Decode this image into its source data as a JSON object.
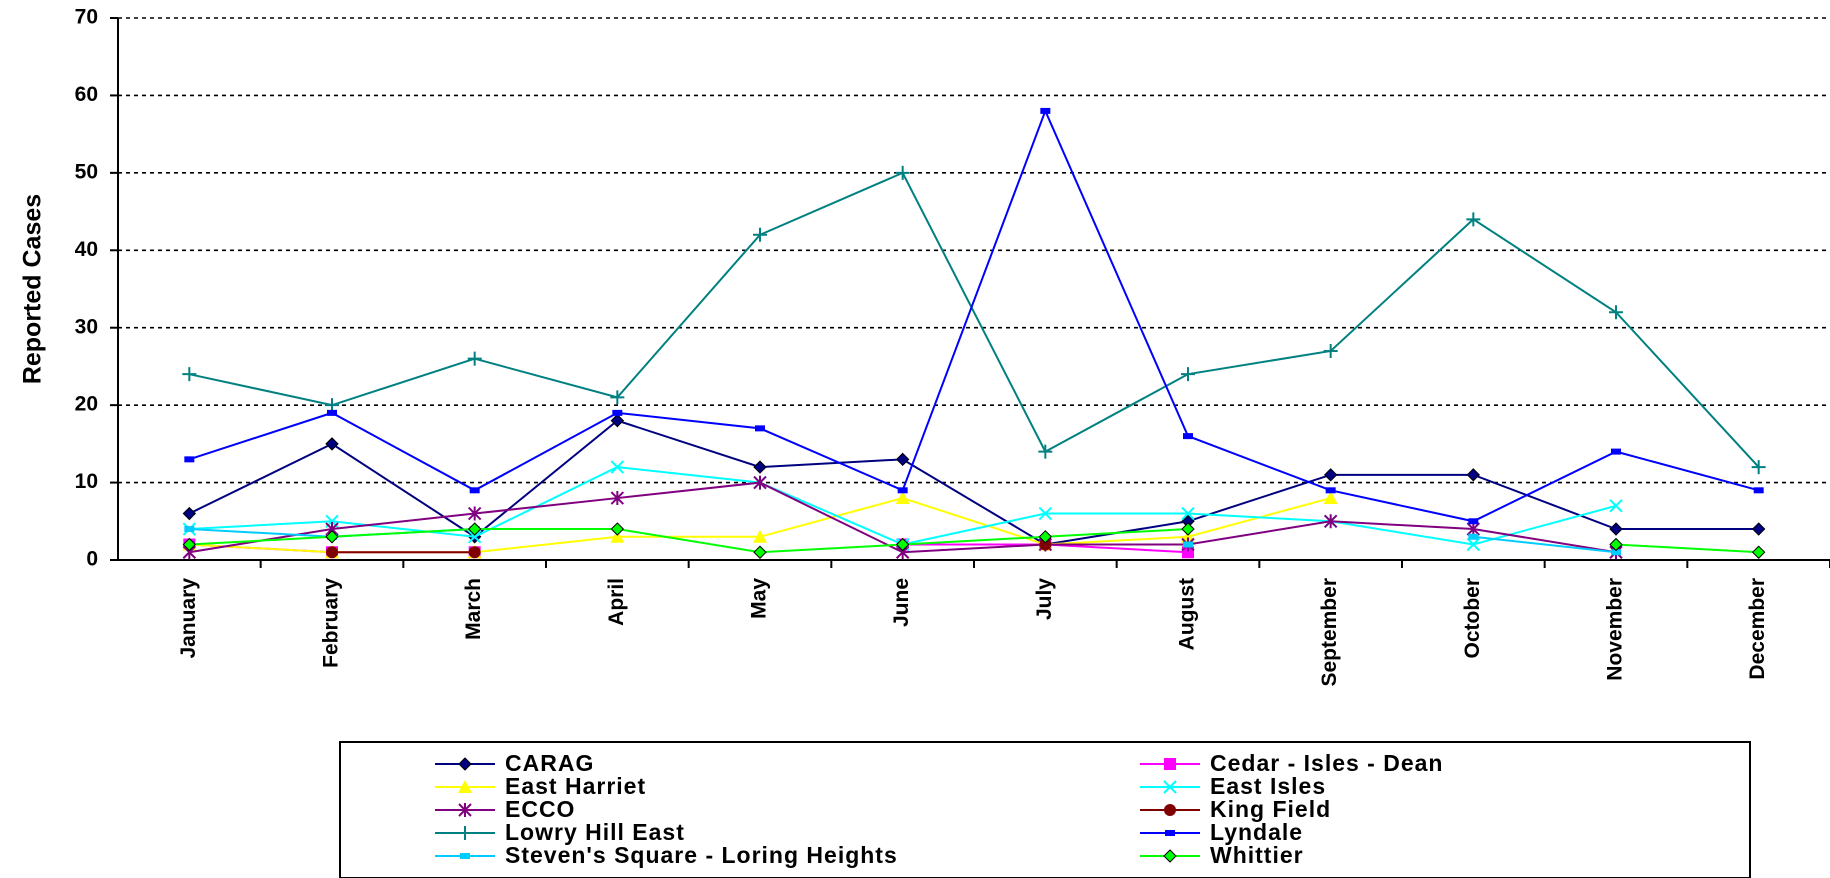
{
  "chart_data": {
    "type": "line",
    "title": "",
    "xlabel": "",
    "ylabel": "Reported Cases",
    "ylim": [
      0,
      70
    ],
    "yticks": [
      "0",
      "10",
      "20",
      "30",
      "40",
      "50",
      "60",
      "70"
    ],
    "grid": "horizontal dashed",
    "legend_position": "bottom",
    "categories": [
      "January",
      "February",
      "March",
      "April",
      "May",
      "June",
      "July",
      "August",
      "September",
      "October",
      "November",
      "December"
    ],
    "series": [
      {
        "name": "CARAG",
        "color": "#000080",
        "marker": "diamond",
        "values": [
          6,
          15,
          3,
          18,
          12,
          13,
          2,
          5,
          11,
          11,
          4,
          4
        ]
      },
      {
        "name": "Cedar - Isles - Dean",
        "color": "#ff00ff",
        "marker": "square",
        "values": [
          2,
          1,
          1,
          null,
          null,
          2,
          2,
          1,
          null,
          null,
          null,
          null
        ]
      },
      {
        "name": "East Harriet",
        "color": "#ffff00",
        "marker": "triangle",
        "values": [
          2,
          1,
          1,
          3,
          3,
          8,
          2,
          3,
          8,
          null,
          null,
          null
        ]
      },
      {
        "name": "East Isles",
        "color": "#00ffff",
        "marker": "x",
        "values": [
          4,
          5,
          3,
          12,
          10,
          2,
          6,
          6,
          5,
          2,
          7,
          null
        ]
      },
      {
        "name": "ECCO",
        "color": "#800080",
        "marker": "star",
        "values": [
          1,
          4,
          6,
          8,
          10,
          1,
          2,
          2,
          5,
          4,
          1,
          null
        ]
      },
      {
        "name": "King Field",
        "color": "#800000",
        "marker": "circle",
        "values": [
          null,
          1,
          1,
          null,
          null,
          null,
          2,
          null,
          null,
          null,
          null,
          null
        ]
      },
      {
        "name": "Lowry Hill East",
        "color": "#008080",
        "marker": "plus",
        "values": [
          24,
          20,
          26,
          21,
          42,
          50,
          14,
          24,
          27,
          44,
          32,
          12
        ]
      },
      {
        "name": "Lyndale",
        "color": "#0000ff",
        "marker": "dash",
        "values": [
          13,
          19,
          9,
          19,
          17,
          9,
          58,
          16,
          9,
          5,
          14,
          9
        ]
      },
      {
        "name": "Steven's Square - Loring Heights",
        "color": "#00ccff",
        "marker": "dash",
        "values": [
          4,
          3,
          4,
          null,
          null,
          2,
          null,
          2,
          null,
          3,
          1,
          null
        ]
      },
      {
        "name": "Whittier",
        "color": "#00ff00",
        "marker": "diamond",
        "values": [
          2,
          3,
          4,
          4,
          1,
          2,
          3,
          4,
          null,
          null,
          2,
          1
        ]
      }
    ]
  }
}
